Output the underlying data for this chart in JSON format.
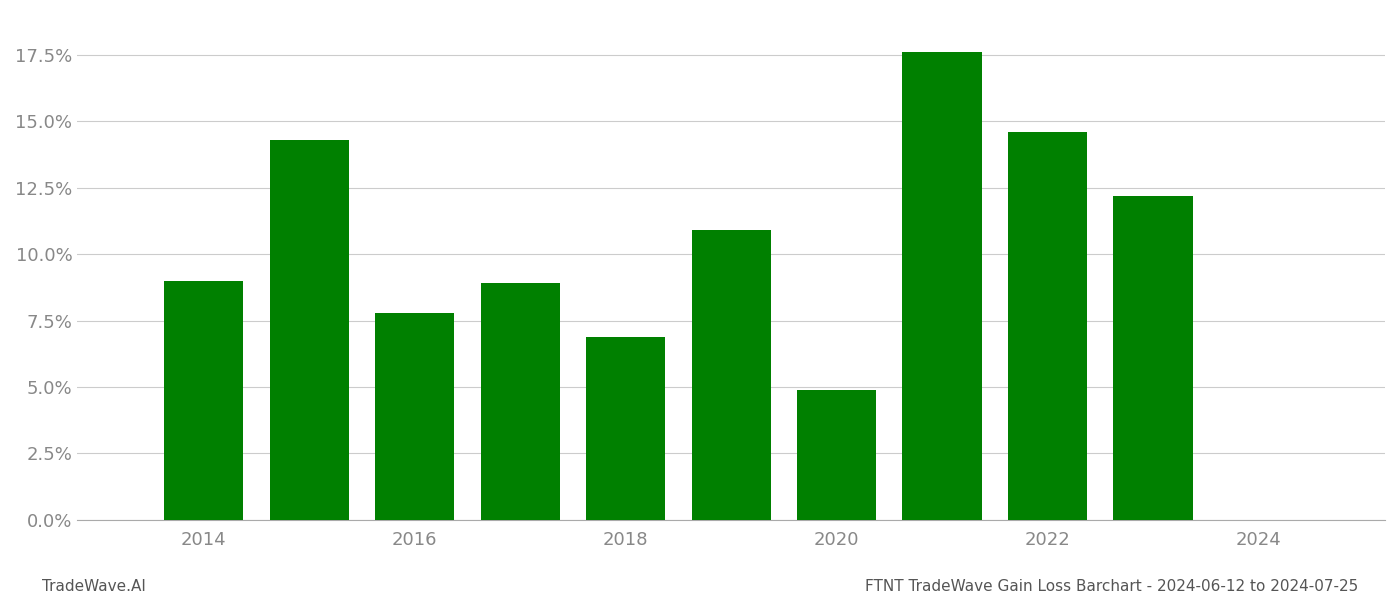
{
  "years": [
    2014,
    2015,
    2016,
    2017,
    2018,
    2019,
    2020,
    2021,
    2022,
    2023
  ],
  "values": [
    0.09,
    0.143,
    0.078,
    0.089,
    0.069,
    0.109,
    0.049,
    0.176,
    0.146,
    0.122
  ],
  "bar_color": "#008000",
  "background_color": "#ffffff",
  "grid_color": "#cccccc",
  "title": "FTNT TradeWave Gain Loss Barchart - 2024-06-12 to 2024-07-25",
  "watermark": "TradeWave.AI",
  "ylim": [
    0,
    0.19
  ],
  "yticks": [
    0.0,
    0.025,
    0.05,
    0.075,
    0.1,
    0.125,
    0.15,
    0.175
  ],
  "xtick_positions": [
    2014,
    2016,
    2018,
    2020,
    2022,
    2024
  ],
  "title_fontsize": 11,
  "watermark_fontsize": 11,
  "axis_label_color": "#888888",
  "bar_width": 0.75,
  "xlim": [
    2012.8,
    2025.2
  ]
}
